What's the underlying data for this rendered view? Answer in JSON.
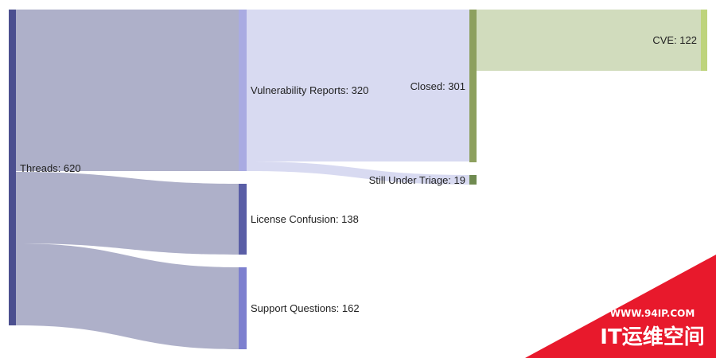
{
  "nodes": [
    {
      "id": "threads",
      "label": "Threads: 620",
      "color": "#4b4f8f"
    },
    {
      "id": "vuln",
      "label": "Vulnerability Reports: 320",
      "color": "#a9abe2"
    },
    {
      "id": "license",
      "label": "License Confusion: 138",
      "color": "#5a5ea6"
    },
    {
      "id": "support",
      "label": "Support Questions: 162",
      "color": "#7d80cf"
    },
    {
      "id": "closed",
      "label": "Closed: 301",
      "color": "#8da05e"
    },
    {
      "id": "triage",
      "label": "Still Under Triage: 19",
      "color": "#6f8a50"
    },
    {
      "id": "cve",
      "label": "CVE: 122",
      "color": "#bed47c"
    }
  ],
  "links": [
    {
      "source": "threads",
      "target": "vuln",
      "value": 320,
      "color": "#aeb0c9"
    },
    {
      "source": "threads",
      "target": "license",
      "value": 138,
      "color": "#aeb0c9"
    },
    {
      "source": "threads",
      "target": "support",
      "value": 162,
      "color": "#aeb0c9"
    },
    {
      "source": "vuln",
      "target": "closed",
      "value": 301,
      "color": "#d8daf1"
    },
    {
      "source": "vuln",
      "target": "triage",
      "value": 19,
      "color": "#d8daf1"
    },
    {
      "source": "closed",
      "target": "cve",
      "value": 122,
      "color": "#d1dcbd"
    }
  ],
  "watermark": {
    "url": "WWW.94IP.COM",
    "brand": "IT运维空间",
    "color": "#e8192c"
  }
}
